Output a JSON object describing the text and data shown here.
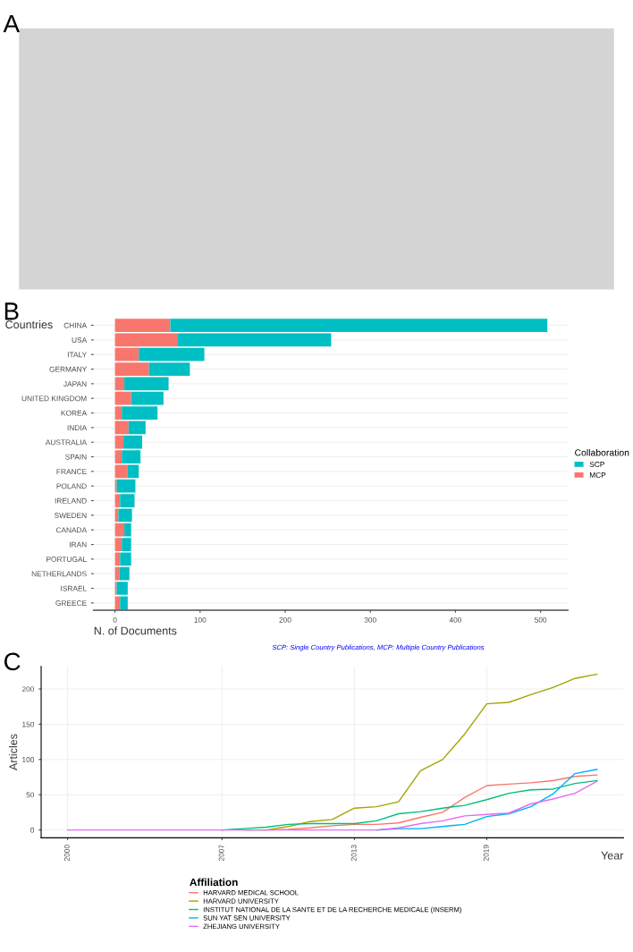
{
  "chart_data": [
    {
      "type": "other",
      "title": "A"
    },
    {
      "type": "bar",
      "title": "B",
      "orientation": "horizontal",
      "stacked": true,
      "ylabel": "Countries",
      "xlabel": "N. of Documents",
      "legend_title": "Collaboration",
      "legend": "right",
      "grid": "y",
      "categories": [
        "CHINA",
        "USA",
        "ITALY",
        "GERMANY",
        "JAPAN",
        "UNITED KINGDOM",
        "KOREA",
        "INDIA",
        "AUSTRALIA",
        "SPAIN",
        "FRANCE",
        "POLAND",
        "IRELAND",
        "SWEDEN",
        "CANADA",
        "IRAN",
        "PORTUGAL",
        "NETHERLANDS",
        "ISRAEL",
        "GREECE"
      ],
      "series": [
        {
          "name": "MCP",
          "color": "#f8766d",
          "values": [
            65,
            74,
            28,
            40,
            11,
            19,
            8,
            16,
            10,
            8,
            15,
            2,
            6,
            4,
            11,
            8,
            6,
            5,
            2,
            6
          ]
        },
        {
          "name": "SCP",
          "color": "#00bfc4",
          "values": [
            443,
            180,
            77,
            48,
            52,
            38,
            42,
            20,
            22,
            22,
            13,
            22,
            17,
            16,
            8,
            11,
            13,
            12,
            13,
            9
          ]
        }
      ],
      "xlim": [
        -25,
        532
      ],
      "xticks": [
        0,
        100,
        200,
        300,
        400,
        500
      ],
      "annotations": [
        "SCP: Single Country Publications, MCP: Multiple Country Publications"
      ]
    },
    {
      "type": "line",
      "title": "C",
      "xlabel": "Year",
      "ylabel": "Articles",
      "legend_title": "Affiliation",
      "legend": "bottom",
      "grid": true,
      "x": [
        2000,
        2001,
        2002,
        2003,
        2004,
        2005,
        2006,
        2007,
        2008,
        2009,
        2010,
        2011,
        2012,
        2013,
        2014,
        2015,
        2016,
        2017,
        2018,
        2019,
        2020,
        2021,
        2022,
        2023,
        2024
      ],
      "series": [
        {
          "name": "HARVARD MEDICAL SCHOOL",
          "color": "#f8766d",
          "values": [
            null,
            null,
            null,
            null,
            null,
            null,
            null,
            null,
            null,
            0,
            1,
            3,
            6,
            8,
            8,
            10,
            18,
            25,
            46,
            63,
            65,
            67,
            70,
            76,
            78
          ]
        },
        {
          "name": "HARVARD UNIVERSITY",
          "color": "#a3a500",
          "values": [
            null,
            null,
            null,
            null,
            null,
            null,
            null,
            null,
            0,
            0,
            5,
            12,
            15,
            31,
            33,
            40,
            84,
            100,
            136,
            179,
            181,
            192,
            202,
            215,
            221
          ]
        },
        {
          "name": "INSTITUT NATIONAL DE LA SANTE ET DE LA RECHERCHE MEDICALE (INSERM)",
          "color": "#00bf7d",
          "values": [
            null,
            null,
            null,
            null,
            null,
            null,
            null,
            0,
            2,
            4,
            8,
            9,
            9,
            9,
            13,
            23,
            26,
            31,
            35,
            43,
            52,
            57,
            58,
            66,
            70
          ]
        },
        {
          "name": "SUN YAT SEN UNIVERSITY",
          "color": "#00b0f6",
          "values": [
            null,
            null,
            null,
            null,
            null,
            null,
            null,
            null,
            null,
            null,
            null,
            null,
            null,
            null,
            0,
            2,
            2,
            5,
            8,
            19,
            23,
            33,
            51,
            80,
            86
          ]
        },
        {
          "name": "ZHEJIANG UNIVERSITY",
          "color": "#e76bf3",
          "values": [
            0,
            0,
            0,
            0,
            0,
            0,
            0,
            0,
            0,
            0,
            0,
            0,
            0,
            0,
            0,
            3,
            9,
            13,
            20,
            22,
            24,
            37,
            44,
            52,
            69
          ]
        }
      ],
      "xlim": [
        1998.8,
        2025.2
      ],
      "xticks": [
        2000,
        2007,
        2013,
        2019
      ],
      "ylim": [
        -11,
        232
      ],
      "yticks": [
        0,
        50,
        100,
        150,
        200
      ]
    }
  ]
}
